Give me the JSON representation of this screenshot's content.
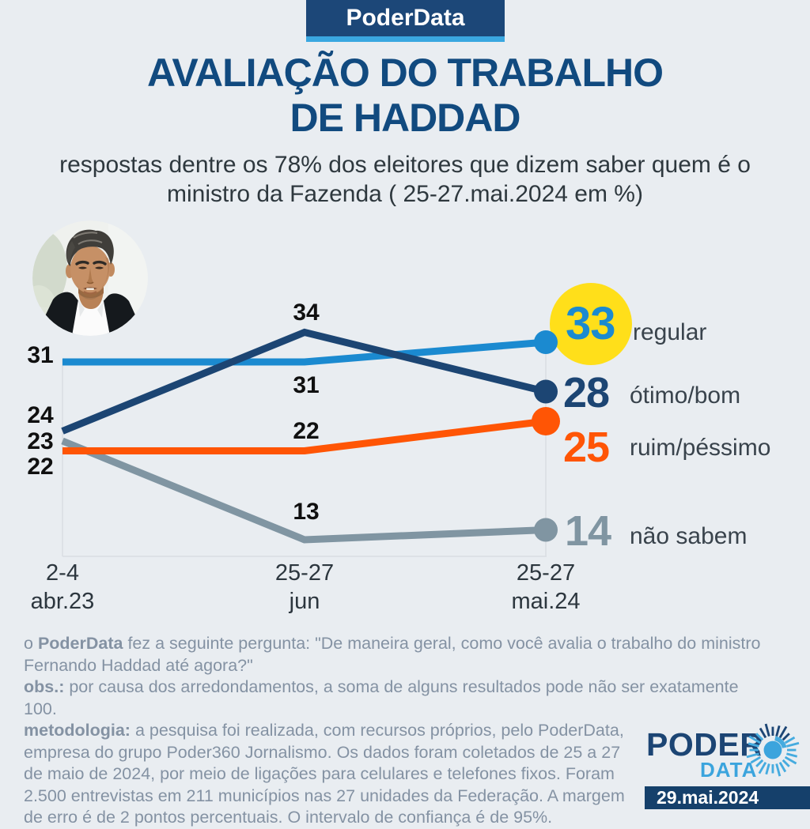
{
  "badge": {
    "label": "PoderData"
  },
  "header": {
    "title_line1": "AVALIAÇÃO DO TRABALHO",
    "title_line2": "DE HADDAD",
    "subtitle_line1": "respostas dentre os 78% dos eleitores que dizem saber quem é o",
    "subtitle_line2": "ministro da Fazenda ( 25-27.mai.2024 em %)"
  },
  "chart_data": {
    "type": "line",
    "title": "AVALIAÇÃO DO TRABALHO DE HADDAD",
    "unit": "%",
    "categories": [
      "2-4 abr.23",
      "25-27 jun",
      "25-27 mai.24"
    ],
    "category_lines": [
      [
        "2-4",
        "abr.23"
      ],
      [
        "25-27",
        "jun"
      ],
      [
        "25-27",
        "mai.24"
      ]
    ],
    "series": [
      {
        "key": "regular",
        "name": "regular",
        "color": "#1b8ad0",
        "values": [
          31,
          31,
          33
        ],
        "highlight_color": "#ffdf1a"
      },
      {
        "key": "otimo_bom",
        "name": "ótimo/bom",
        "color": "#1c4573",
        "values": [
          24,
          34,
          28
        ]
      },
      {
        "key": "ruim_pessimo",
        "name": "ruim/péssimo",
        "color": "#ff5505",
        "values": [
          22,
          22,
          25
        ]
      },
      {
        "key": "nao_sabem",
        "name": "não sabem",
        "color": "#8095a2",
        "values": [
          23,
          13,
          14
        ]
      }
    ],
    "ylim": [
      10,
      37
    ],
    "grid": false,
    "legend_position": "right-of-last-point"
  },
  "footer": {
    "q_prefix": "o ",
    "q_bold": "PoderData",
    "q_rest": " fez a seguinte pergunta: \"De maneira geral, como você avalia o trabalho do ministro Fernando Haddad até agora?\"",
    "obs_bold": "obs.:",
    "obs_rest": " por causa dos arredondamentos, a soma de alguns resultados pode não ser exatamente 100.",
    "met_bold": "metodologia:",
    "met_rest": " a pesquisa foi realizada, com recursos próprios, pelo PoderData, empresa do grupo Poder360 Jornalismo. Os dados foram coletados de 25 a 27 de maio de 2024, por meio de ligações para celulares e telefones fixos. Foram 2.500 entrevistas em 211 municípios nas 27 unidades da Federação. A margem de erro é de 2 pontos percentuais. O intervalo de confiança é de 95%."
  },
  "logo": {
    "line1": "PODER",
    "line2": "DATA"
  },
  "date_badge": "29.mai.2024",
  "colors": {
    "background": "#e9edf1",
    "brand_navy": "#1c4778",
    "brand_light_blue": "#3aa7e0",
    "title_navy": "#114a7f",
    "highlight_yellow": "#ffdf1a",
    "footer_gray": "#8492a3",
    "axis_gray": "#d9dde2"
  }
}
